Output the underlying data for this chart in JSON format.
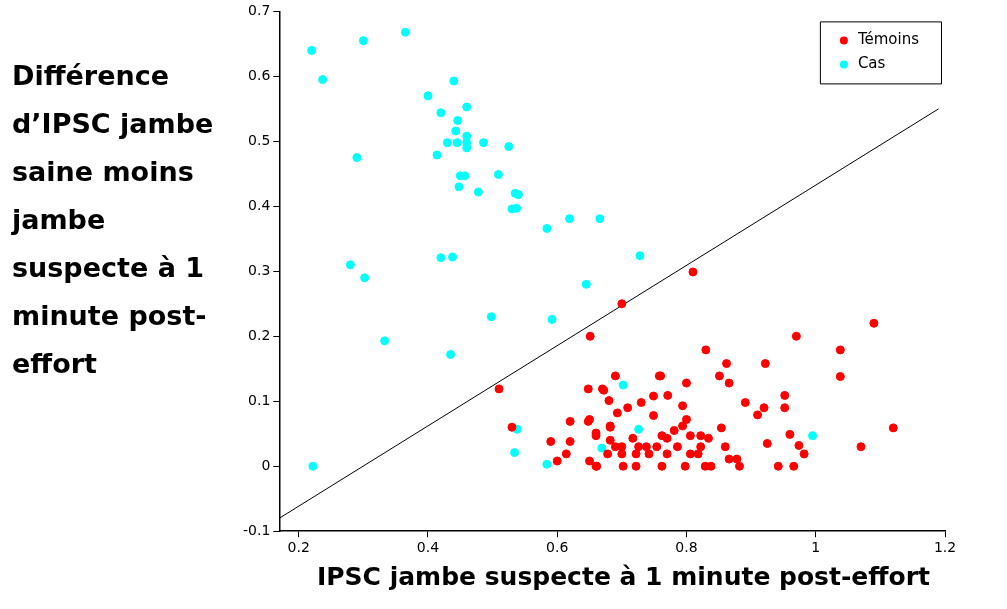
{
  "chart_data": {
    "type": "scatter",
    "xlabel": "IPSC jambe suspecte à 1 minute post-effort",
    "ylabel": "Différence d’IPSC jambe saine  moins jambe suspecte à 1 minute post-effort",
    "xlim": [
      0.17,
      1.2
    ],
    "ylim": [
      -0.1,
      0.7
    ],
    "xticks": [
      0.2,
      0.4,
      0.6,
      0.8,
      1,
      1.2
    ],
    "yticks": [
      -0.1,
      0,
      0.1,
      0.2,
      0.3,
      0.4,
      0.5,
      0.6,
      0.7
    ],
    "grid": false,
    "legend": "top right",
    "series": [
      {
        "name": "Témoins",
        "color": "#ff0000",
        "type": "scatter",
        "marker": "circle",
        "x": [
          0.7,
          0.651,
          0.51,
          0.53,
          0.59,
          0.62,
          0.62,
          0.614,
          0.6,
          0.648,
          0.69,
          0.758,
          0.67,
          0.648,
          0.682,
          0.66,
          0.65,
          0.66,
          0.81,
          0.83,
          0.862,
          0.922,
          0.97,
          1.038,
          1.09,
          1.038,
          1.12,
          1.07,
          0.851,
          0.866,
          0.8,
          0.76,
          0.891,
          0.952,
          0.952,
          0.92,
          0.91,
          0.96,
          0.974,
          0.982,
          0.942,
          0.966,
          0.925,
          0.878,
          0.866,
          0.854,
          0.822,
          0.806,
          0.8,
          0.794,
          0.771,
          0.749,
          0.73,
          0.709,
          0.693,
          0.749,
          0.672,
          0.68,
          0.65,
          0.66,
          0.682,
          0.682,
          0.7,
          0.722,
          0.738,
          0.762,
          0.781,
          0.794,
          0.661,
          0.702,
          0.722,
          0.762,
          0.798,
          0.829,
          0.838,
          0.882,
          0.678,
          0.7,
          0.742,
          0.77,
          0.806,
          0.818,
          0.69,
          0.726,
          0.754,
          0.786,
          0.822,
          0.86,
          0.717,
          0.77,
          0.834
        ],
        "values": [
          0.25,
          0.2,
          0.119,
          0.06,
          0.038,
          0.069,
          0.038,
          0.019,
          0.008,
          0.119,
          0.139,
          0.139,
          0.119,
          0.069,
          0.06,
          0.047,
          0.008,
          0,
          0.299,
          0.179,
          0.158,
          0.158,
          0.2,
          0.179,
          0.22,
          0.138,
          0.059,
          0.03,
          0.139,
          0.128,
          0.128,
          0.139,
          0.098,
          0.109,
          0.09,
          0.09,
          0.079,
          0.049,
          0.032,
          0.019,
          0,
          0,
          0.035,
          0.011,
          0.011,
          0.059,
          0.047,
          0.047,
          0.072,
          0.093,
          0.109,
          0.108,
          0.098,
          0.09,
          0.082,
          0.078,
          0.117,
          0.101,
          0.072,
          0.051,
          0.062,
          0.04,
          0.03,
          0.019,
          0.03,
          0.047,
          0.055,
          0.062,
          0,
          0,
          0,
          0,
          0,
          0,
          0,
          0,
          0.019,
          0.019,
          0.019,
          0.019,
          0.019,
          0.019,
          0.03,
          0.03,
          0.03,
          0.03,
          0.03,
          0.03,
          0.043,
          0.043,
          0.043
        ]
      },
      {
        "name": "Cas",
        "color": "#00ffff",
        "type": "scatter",
        "marker": "circle",
        "x": [
          0.22,
          0.3,
          0.365,
          0.237,
          0.44,
          0.4,
          0.46,
          0.42,
          0.446,
          0.443,
          0.46,
          0.43,
          0.445,
          0.46,
          0.46,
          0.486,
          0.525,
          0.29,
          0.414,
          0.45,
          0.457,
          0.448,
          0.478,
          0.509,
          0.535,
          0.54,
          0.53,
          0.537,
          0.584,
          0.619,
          0.666,
          0.728,
          0.42,
          0.438,
          0.28,
          0.302,
          0.333,
          0.435,
          0.498,
          0.592,
          0.645,
          0.222,
          0.538,
          0.534,
          0.584,
          0.702,
          0.726,
          0.669,
          0.995
        ],
        "values": [
          0.64,
          0.655,
          0.668,
          0.595,
          0.593,
          0.57,
          0.553,
          0.544,
          0.532,
          0.516,
          0.508,
          0.498,
          0.498,
          0.498,
          0.49,
          0.498,
          0.492,
          0.475,
          0.479,
          0.447,
          0.447,
          0.43,
          0.422,
          0.449,
          0.42,
          0.418,
          0.396,
          0.397,
          0.366,
          0.381,
          0.381,
          0.324,
          0.321,
          0.322,
          0.31,
          0.29,
          0.193,
          0.172,
          0.23,
          0.226,
          0.28,
          0,
          0.057,
          0.021,
          0.003,
          0.125,
          0.057,
          0.028,
          0.047
        ]
      },
      {
        "color": "#000000",
        "type": "line",
        "x": [
          0.17,
          1.19
        ],
        "values": [
          -0.08,
          0.55
        ]
      }
    ]
  }
}
